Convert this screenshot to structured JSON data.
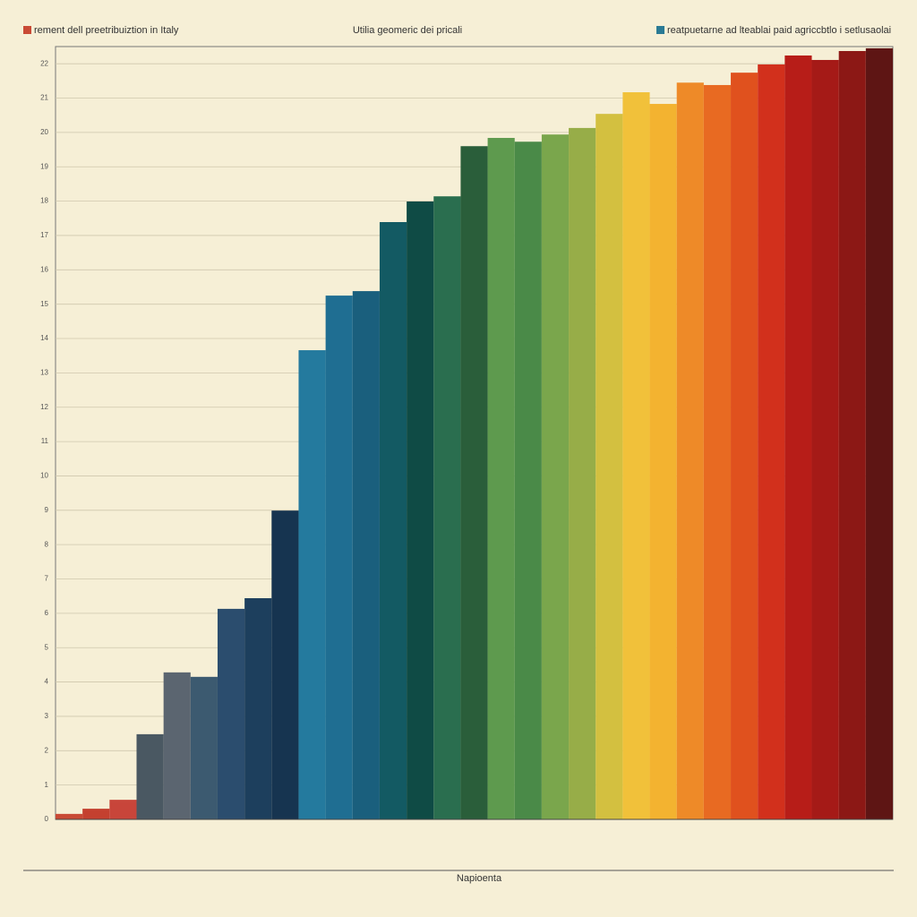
{
  "chart_data": {
    "type": "bar",
    "title": "Utilia geomeric dei pricali",
    "x_label": "Napioenta",
    "legend": [
      {
        "name": "rement dell preetribuiztion in Italy",
        "color": "#c94a35"
      },
      {
        "name": "reatpuetarne ad lteablai paid agriccbtlo i setlusaolai",
        "color": "#2a7a94"
      }
    ],
    "categories": [
      null,
      null,
      null,
      null,
      null,
      null,
      null,
      null,
      null,
      null,
      null,
      null,
      null,
      null,
      null,
      null,
      null,
      null,
      null,
      null,
      null,
      null,
      null,
      null,
      null,
      null,
      null,
      null,
      null,
      null,
      null
    ],
    "values": [
      0.16,
      0.31,
      0.57,
      2.48,
      4.28,
      4.15,
      6.13,
      6.44,
      8.99,
      13.66,
      15.25,
      15.38,
      17.39,
      17.99,
      18.14,
      19.6,
      19.84,
      19.73,
      19.94,
      20.13,
      20.54,
      21.17,
      20.83,
      21.45,
      21.38,
      21.74,
      21.98,
      22.24,
      22.11,
      22.37,
      22.45
    ],
    "colors": [
      "#c94a35",
      "#c4402f",
      "#c8453a",
      "#4a5862",
      "#5b6570",
      "#3c5a70",
      "#2b4d6e",
      "#1d3f5d",
      "#163450",
      "#247a9e",
      "#1f6e92",
      "#1a5f7d",
      "#135a63",
      "#0f4b45",
      "#2a6e4f",
      "#2a5e3a",
      "#5e9a4e",
      "#4a8a48",
      "#7aa64c",
      "#97ad48",
      "#d3c040",
      "#f1c13a",
      "#f3b330",
      "#ee8a28",
      "#e86a22",
      "#e0511e",
      "#d2301c",
      "#b71d18",
      "#a51a17",
      "#8c1815",
      "#5e1514"
    ],
    "ylim": [
      0,
      22.5
    ],
    "yticks": [
      0,
      1,
      2,
      3,
      4,
      5,
      6,
      7,
      8,
      9,
      10,
      11,
      12,
      13,
      14,
      15,
      16,
      17,
      18,
      19,
      20,
      21,
      22
    ],
    "grid": true
  }
}
